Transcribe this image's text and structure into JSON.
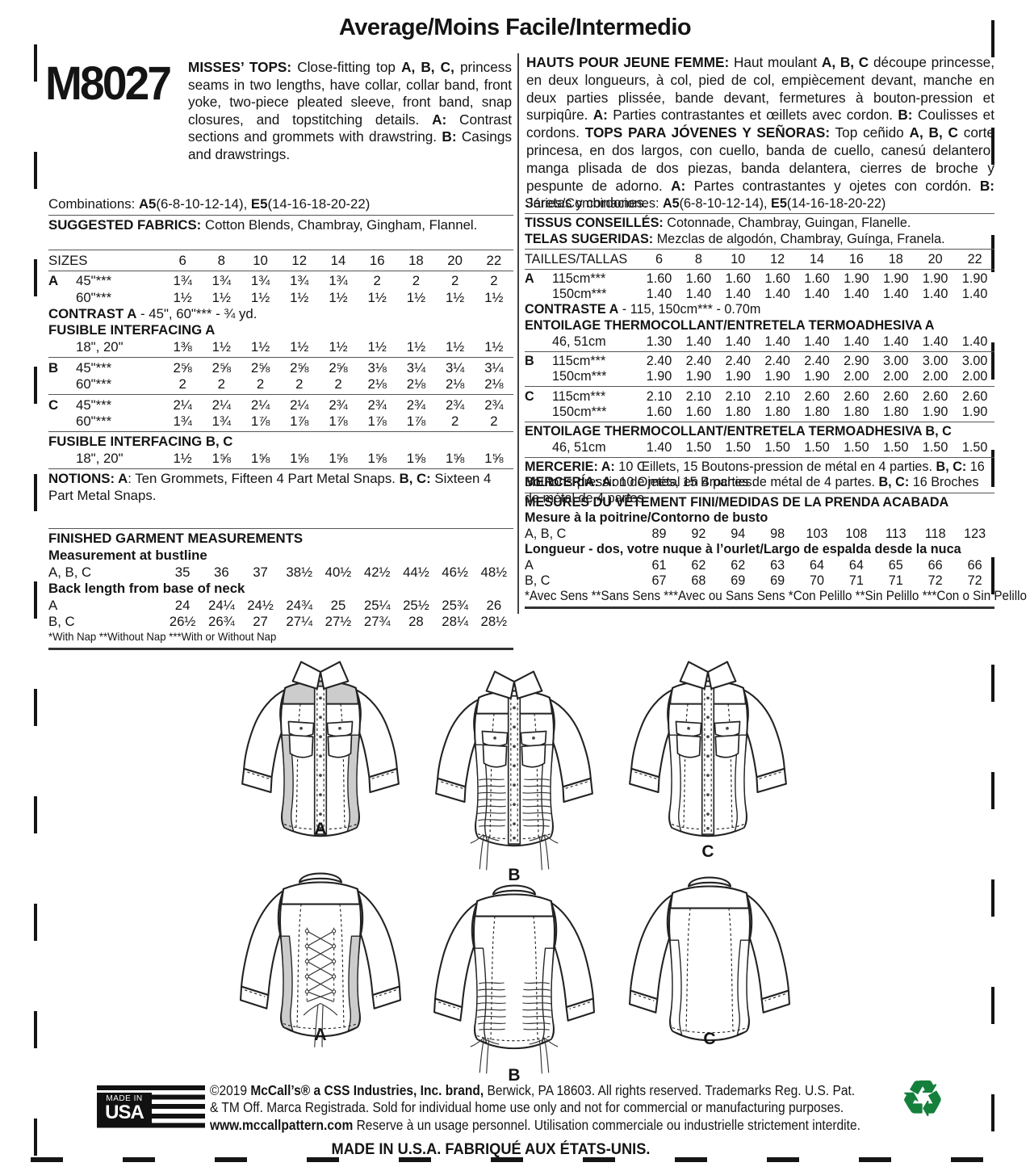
{
  "header": {
    "difficulty": "Average/Moins Facile/Intermedio",
    "pattern_number": "M8027"
  },
  "colors": {
    "contrast_gray": "#cccccc",
    "recycle_green": "#157f3c",
    "ink": "#141414"
  },
  "description_en": [
    {
      "t": "MISSES’ TOPS: ",
      "b": true
    },
    {
      "t": "Close-fitting top ",
      "b": false
    },
    {
      "t": "A, B, C,",
      "b": true
    },
    {
      "t": " princess seams in two lengths, have collar, collar band, front yoke, two-piece pleated sleeve, front band, snap closures, and topstitching details. ",
      "b": false
    },
    {
      "t": "A:",
      "b": true
    },
    {
      "t": " Contrast sections and grommets with drawstring. ",
      "b": false
    },
    {
      "t": "B:",
      "b": true
    },
    {
      "t": " Casings and drawstrings.",
      "b": false
    }
  ],
  "description_fr": [
    {
      "t": "HAUTS POUR JEUNE FEMME:",
      "b": true
    },
    {
      "t": " Haut moulant ",
      "b": false
    },
    {
      "t": "A, B, C",
      "b": true
    },
    {
      "t": " découpe princesse, en deux longueurs, à col, pied de col, empiècement devant, manche en deux parties plissée, bande devant, fermetures à bouton-pression et surpiqûre. ",
      "b": false
    },
    {
      "t": "A:",
      "b": true
    },
    {
      "t": " Parties contrastantes et œillets avec cordon. ",
      "b": false
    },
    {
      "t": "B:",
      "b": true
    },
    {
      "t": " Coulisses et cordons.",
      "b": false
    }
  ],
  "description_es": [
    {
      "t": "TOPS PARA JÓVENES Y SEÑORAS:",
      "b": true
    },
    {
      "t": " Top ceñido ",
      "b": false
    },
    {
      "t": "A, B, C",
      "b": true
    },
    {
      "t": " corte princesa, en dos largos, con cuello, banda de cuello, canesú delantero, manga plisada de dos piezas, banda delantera, cierres de broche y pespunte de adorno. ",
      "b": false
    },
    {
      "t": "A:",
      "b": true
    },
    {
      "t": " Partes contrastantes y ojetes con cordón. ",
      "b": false
    },
    {
      "t": "B:",
      "b": true
    },
    {
      "t": " Jaretas y cordones.",
      "b": false
    }
  ],
  "left_table": [
    {
      "type": "text",
      "segments": [
        {
          "t": "Combinations: ",
          "b": false
        },
        {
          "t": "A5",
          "b": true
        },
        {
          "t": "(6-8-10-12-14), ",
          "b": false
        },
        {
          "t": "E5",
          "b": true
        },
        {
          "t": "(14-16-18-20-22)",
          "b": false
        }
      ]
    },
    {
      "type": "rule"
    },
    {
      "type": "text",
      "segments": [
        {
          "t": "SUGGESTED FABRICS:",
          "b": true
        },
        {
          "t": " Cotton Blends, Chambray, Gingham, Flannel.",
          "b": false
        }
      ]
    },
    {
      "type": "gap",
      "h": 18
    },
    {
      "type": "rule"
    },
    {
      "type": "cols",
      "label": "SIZES",
      "values": [
        "6",
        "8",
        "10",
        "12",
        "14",
        "16",
        "18",
        "20",
        "22"
      ]
    },
    {
      "type": "rule"
    },
    {
      "type": "cols",
      "letter": "A",
      "label": "45\"***",
      "values": [
        "1¾",
        "1¾",
        "1¾",
        "1¾",
        "1¾",
        "2",
        "2",
        "2",
        "2"
      ]
    },
    {
      "type": "cols",
      "letter": "",
      "label": "60\"***",
      "values": [
        "1½",
        "1½",
        "1½",
        "1½",
        "1½",
        "1½",
        "1½",
        "1½",
        "1½"
      ]
    },
    {
      "type": "text",
      "segments": [
        {
          "t": "CONTRAST A",
          "b": true
        },
        {
          "t": " - 45\", 60\"*** - ¾ yd.",
          "b": false
        }
      ]
    },
    {
      "type": "text",
      "segments": [
        {
          "t": "FUSIBLE INTERFACING A",
          "b": true
        }
      ]
    },
    {
      "type": "cols",
      "letter": "",
      "label": "18\", 20\"",
      "values": [
        "1⅜",
        "1½",
        "1½",
        "1½",
        "1½",
        "1½",
        "1½",
        "1½",
        "1½"
      ]
    },
    {
      "type": "rule"
    },
    {
      "type": "cols",
      "letter": "B",
      "label": "45\"***",
      "values": [
        "2⅝",
        "2⅝",
        "2⅝",
        "2⅝",
        "2⅝",
        "3⅛",
        "3¼",
        "3¼",
        "3¼"
      ]
    },
    {
      "type": "cols",
      "letter": "",
      "label": "60\"***",
      "values": [
        "2",
        "2",
        "2",
        "2",
        "2",
        "2⅛",
        "2⅛",
        "2⅛",
        "2⅛"
      ]
    },
    {
      "type": "rule"
    },
    {
      "type": "cols",
      "letter": "C",
      "label": "45\"***",
      "values": [
        "2¼",
        "2¼",
        "2¼",
        "2¼",
        "2¾",
        "2¾",
        "2¾",
        "2¾",
        "2¾"
      ]
    },
    {
      "type": "cols",
      "letter": "",
      "label": "60\"***",
      "values": [
        "1¾",
        "1¾",
        "1⅞",
        "1⅞",
        "1⅞",
        "1⅞",
        "1⅞",
        "2",
        "2"
      ]
    },
    {
      "type": "rule"
    },
    {
      "type": "text",
      "segments": [
        {
          "t": "FUSIBLE INTERFACING B, C",
          "b": true
        }
      ]
    },
    {
      "type": "cols",
      "letter": "",
      "label": "18\", 20\"",
      "values": [
        "1½",
        "1⅝",
        "1⅝",
        "1⅝",
        "1⅝",
        "1⅝",
        "1⅝",
        "1⅝",
        "1⅝"
      ]
    },
    {
      "type": "rule"
    },
    {
      "type": "text",
      "wrap": true,
      "segments": [
        {
          "t": "NOTIONS: A",
          "b": true
        },
        {
          "t": ": Ten Grommets, Fifteen 4 Part Metal Snaps. ",
          "b": false
        },
        {
          "t": "B, C:",
          "b": true
        },
        {
          "t": " Sixteen 4 Part Metal Snaps.",
          "b": false
        }
      ]
    },
    {
      "type": "gap",
      "h": 28
    },
    {
      "type": "rule"
    },
    {
      "type": "text",
      "segments": [
        {
          "t": "FINISHED GARMENT MEASUREMENTS",
          "b": true
        }
      ]
    },
    {
      "type": "text",
      "segments": [
        {
          "t": "Measurement at bustline",
          "b": true
        }
      ]
    },
    {
      "type": "cols",
      "label": "A, B, C",
      "values": [
        "35",
        "36",
        "37",
        "38½",
        "40½",
        "42½",
        "44½",
        "46½",
        "48½"
      ]
    },
    {
      "type": "text",
      "segments": [
        {
          "t": "Back length from base of neck",
          "b": true
        }
      ]
    },
    {
      "type": "cols",
      "label": "A",
      "values": [
        "24",
        "24¼",
        "24½",
        "24¾",
        "25",
        "25¼",
        "25½",
        "25¾",
        "26"
      ]
    },
    {
      "type": "cols",
      "label": "B, C",
      "values": [
        "26½",
        "26¾",
        "27",
        "27¼",
        "27½",
        "27¾",
        "28",
        "28¼",
        "28½"
      ]
    },
    {
      "type": "footnote",
      "segments": [
        {
          "t": "*With Nap **Without Nap ***With or Without Nap",
          "b": false
        }
      ]
    },
    {
      "type": "thickrule"
    }
  ],
  "right_table": [
    {
      "type": "text",
      "segments": [
        {
          "t": "Séries/Combinaciones: ",
          "b": false
        },
        {
          "t": "A5",
          "b": true
        },
        {
          "t": "(6-8-10-12-14), ",
          "b": false
        },
        {
          "t": "E5",
          "b": true
        },
        {
          "t": "(14-16-18-20-22)",
          "b": false
        }
      ]
    },
    {
      "type": "rule"
    },
    {
      "type": "text",
      "segments": [
        {
          "t": "TISSUS CONSEILLÉS:",
          "b": true
        },
        {
          "t": " Cotonnade, Chambray, Guingan, Flanelle.",
          "b": false
        }
      ]
    },
    {
      "type": "text",
      "segments": [
        {
          "t": "TELAS SUGERIDAS:",
          "b": true
        },
        {
          "t": " Mezclas de algodón, Chambray, Guínga, Franela.",
          "b": false
        }
      ]
    },
    {
      "type": "rule"
    },
    {
      "type": "cols",
      "label": "TAILLES/TALLAS",
      "values": [
        "6",
        "8",
        "10",
        "12",
        "14",
        "16",
        "18",
        "20",
        "22"
      ]
    },
    {
      "type": "rule"
    },
    {
      "type": "cols",
      "letter": "A",
      "label": "115cm***",
      "values": [
        "1.60",
        "1.60",
        "1.60",
        "1.60",
        "1.60",
        "1.90",
        "1.90",
        "1.90",
        "1.90"
      ]
    },
    {
      "type": "cols",
      "letter": "",
      "label": "150cm***",
      "values": [
        "1.40",
        "1.40",
        "1.40",
        "1.40",
        "1.40",
        "1.40",
        "1.40",
        "1.40",
        "1.40"
      ]
    },
    {
      "type": "text",
      "segments": [
        {
          "t": "CONTRASTE A",
          "b": true
        },
        {
          "t": " - 115, 150cm*** - 0.70m",
          "b": false
        }
      ]
    },
    {
      "type": "text",
      "segments": [
        {
          "t": "ENTOILAGE THERMOCOLLANT/ENTRETELA TERMOADHESIVA A",
          "b": true
        }
      ]
    },
    {
      "type": "cols",
      "letter": "",
      "label": "46, 51cm",
      "values": [
        "1.30",
        "1.40",
        "1.40",
        "1.40",
        "1.40",
        "1.40",
        "1.40",
        "1.40",
        "1.40"
      ]
    },
    {
      "type": "rule"
    },
    {
      "type": "cols",
      "letter": "B",
      "label": "115cm***",
      "values": [
        "2.40",
        "2.40",
        "2.40",
        "2.40",
        "2.40",
        "2.90",
        "3.00",
        "3.00",
        "3.00"
      ]
    },
    {
      "type": "cols",
      "letter": "",
      "label": "150cm***",
      "values": [
        "1.90",
        "1.90",
        "1.90",
        "1.90",
        "1.90",
        "2.00",
        "2.00",
        "2.00",
        "2.00"
      ]
    },
    {
      "type": "rule"
    },
    {
      "type": "cols",
      "letter": "C",
      "label": "115cm***",
      "values": [
        "2.10",
        "2.10",
        "2.10",
        "2.10",
        "2.60",
        "2.60",
        "2.60",
        "2.60",
        "2.60"
      ]
    },
    {
      "type": "cols",
      "letter": "",
      "label": "150cm***",
      "values": [
        "1.60",
        "1.60",
        "1.80",
        "1.80",
        "1.80",
        "1.80",
        "1.80",
        "1.90",
        "1.90"
      ]
    },
    {
      "type": "rule"
    },
    {
      "type": "text",
      "segments": [
        {
          "t": "ENTOILAGE THERMOCOLLANT/ENTRETELA TERMOADHESIVA B, C",
          "b": true
        }
      ]
    },
    {
      "type": "cols",
      "letter": "",
      "label": "46, 51cm",
      "values": [
        "1.40",
        "1.50",
        "1.50",
        "1.50",
        "1.50",
        "1.50",
        "1.50",
        "1.50",
        "1.50"
      ]
    },
    {
      "type": "rule"
    },
    {
      "type": "text",
      "wrap": true,
      "segments": [
        {
          "t": "MERCERIE: A:",
          "b": true
        },
        {
          "t": " 10 Œillets, 15 Boutons-pression de métal en 4 parties. ",
          "b": false
        },
        {
          "t": "B, C:",
          "b": true
        },
        {
          "t": " 16 Boutons-pression de métal en 4 parties.",
          "b": false
        }
      ]
    },
    {
      "type": "text",
      "wrap": true,
      "segments": [
        {
          "t": "MERCERÍA: A:",
          "b": true
        },
        {
          "t": " 10 Ojetes, 15 Broches de métal de 4 partes. ",
          "b": false
        },
        {
          "t": "B, C:",
          "b": true
        },
        {
          "t": " 16 Broches de métal de 4 partes.",
          "b": false
        }
      ]
    },
    {
      "type": "rule"
    },
    {
      "type": "text",
      "segments": [
        {
          "t": "MESURES DU VÊTEMENT FINI/MEDIDAS DE LA PRENDA ACABADA",
          "b": true
        }
      ]
    },
    {
      "type": "text",
      "segments": [
        {
          "t": "Mesure à la poitrine/Contorno de busto",
          "b": true
        }
      ]
    },
    {
      "type": "cols",
      "label": "A, B, C",
      "values": [
        "89",
        "92",
        "94",
        "98",
        "103",
        "108",
        "113",
        "118",
        "123"
      ]
    },
    {
      "type": "text",
      "segments": [
        {
          "t": "Longueur - dos, votre nuque à l’ourlet/Largo de espalda desde la nuca",
          "b": true
        }
      ]
    },
    {
      "type": "cols",
      "label": "A",
      "values": [
        "61",
        "62",
        "62",
        "63",
        "64",
        "64",
        "65",
        "66",
        "66"
      ]
    },
    {
      "type": "cols",
      "label": "B, C",
      "values": [
        "67",
        "68",
        "69",
        "69",
        "70",
        "71",
        "71",
        "72",
        "72"
      ]
    },
    {
      "type": "footnote",
      "segments": [
        {
          "t": "*Avec Sens **Sans Sens ***Avec ou Sans Sens",
          "b": false
        },
        {
          "t": "    ",
          "b": false
        },
        {
          "t": "*Con Pelillo **Sin Pelillo ***Con o Sin Pelillo",
          "b": false
        }
      ]
    },
    {
      "type": "thickrule"
    }
  ],
  "illustrations": {
    "front_labels": [
      "A",
      "B",
      "C"
    ],
    "back_labels": [
      "A",
      "B",
      "C"
    ]
  },
  "footer": {
    "usa_logo_top": "MADE IN",
    "usa_logo_bottom": "USA",
    "copyright1": [
      {
        "t": "©2019 ",
        "b": false
      },
      {
        "t": "McCall’s® a CSS Industries, Inc. brand,",
        "b": true
      },
      {
        "t": " Berwick, PA 18603. All rights reserved. Trademarks Reg. U.S. Pat.",
        "b": false
      }
    ],
    "copyright2": [
      {
        "t": "& TM Off. Marca Registrada. Sold for individual home use only and not for commercial or manufacturing purposes.",
        "b": false
      }
    ],
    "copyright3": [
      {
        "t": "www.mccallpattern.com",
        "b": true
      },
      {
        "t": "   Reserve à un usage personnel. Utilisation commerciale ou industrielle strictement interdite.",
        "b": false
      }
    ],
    "made_in_line": "MADE IN U.S.A.  FABRIQUÉ AUX ÉTATS-UNIS.",
    "recycle_symbol": "♻"
  }
}
